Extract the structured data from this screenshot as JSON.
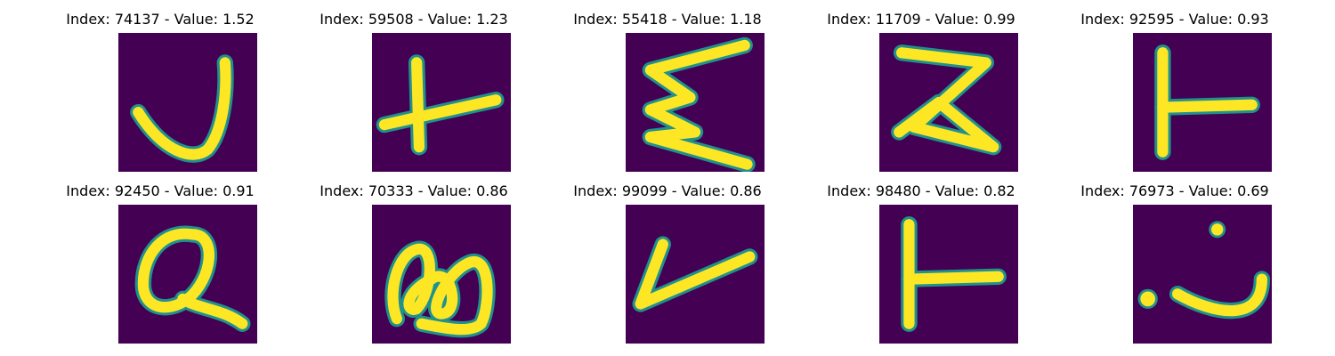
{
  "colors": {
    "background": "#440154",
    "mid": "#21918c",
    "stroke": "#fde725"
  },
  "panels": [
    {
      "title": "Index: 74137 - Value: 1.52",
      "glyph": "j-hook"
    },
    {
      "title": "Index: 59508 - Value: 1.23",
      "glyph": "plus"
    },
    {
      "title": "Index: 55418 - Value: 1.18",
      "glyph": "zigzag-sigma"
    },
    {
      "title": "Index: 11709 - Value: 0.99",
      "glyph": "zigzag-m"
    },
    {
      "title": "Index: 92595 - Value: 0.93",
      "glyph": "rotated-t"
    },
    {
      "title": "Index: 92450 - Value: 0.91",
      "glyph": "q-loop"
    },
    {
      "title": "Index: 70333 - Value: 0.86",
      "glyph": "w-loops"
    },
    {
      "title": "Index: 99099 - Value: 0.86",
      "glyph": "v-check"
    },
    {
      "title": "Index: 98480 - Value: 0.82",
      "glyph": "rotated-t"
    },
    {
      "title": "Index: 76973 - Value: 0.69",
      "glyph": "j-dots"
    }
  ]
}
